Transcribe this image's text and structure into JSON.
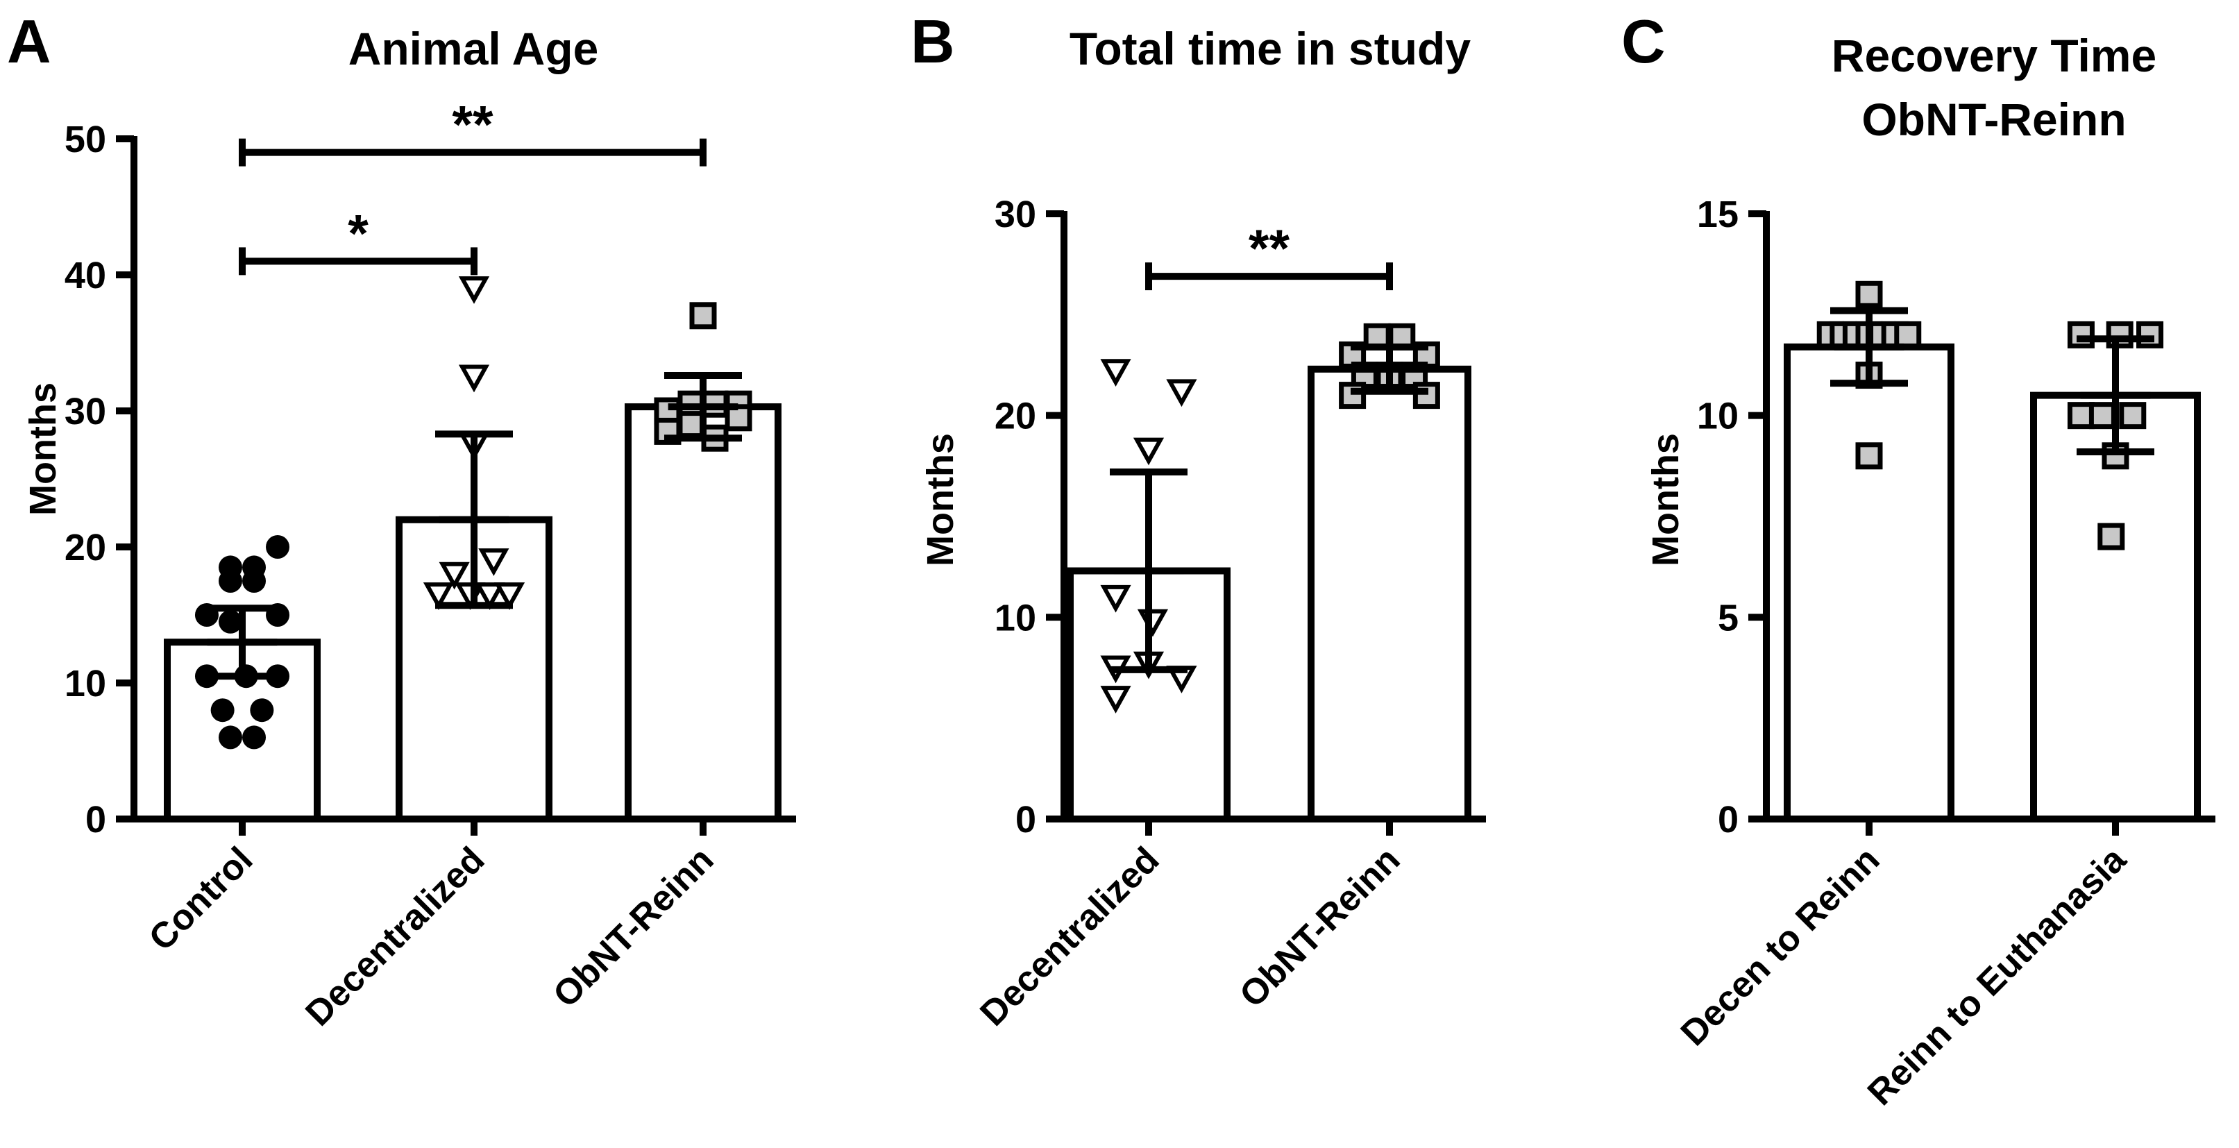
{
  "colors": {
    "ink": "#000000",
    "square_fill": "#c8c8c8",
    "background": "#ffffff"
  },
  "chart_data": [
    {
      "panel": "A",
      "type": "bar",
      "title": [
        "Animal Age"
      ],
      "ylabel": "Months",
      "ylim": [
        0,
        50
      ],
      "yticks": [
        0,
        10,
        20,
        30,
        40,
        50
      ],
      "categories": [
        "Control",
        "Decentralized",
        "ObNT-Reinn"
      ],
      "means": [
        13,
        22,
        30.3
      ],
      "sd": [
        2.5,
        6.3,
        2.3
      ],
      "markers": [
        "circle",
        "triangle",
        "square"
      ],
      "points": [
        [
          [
            -0.45,
            15
          ],
          [
            0.45,
            15
          ],
          [
            -0.15,
            17.5
          ],
          [
            0.15,
            17.5
          ],
          [
            -0.15,
            18.5
          ],
          [
            0.15,
            18.5
          ],
          [
            0.45,
            20
          ],
          [
            -0.15,
            14.5
          ],
          [
            -0.45,
            10.5
          ],
          [
            0.05,
            10.5
          ],
          [
            0.45,
            10.5
          ],
          [
            -0.25,
            8
          ],
          [
            0.25,
            8
          ],
          [
            -0.15,
            6
          ],
          [
            0.15,
            6
          ]
        ],
        [
          [
            0,
            39
          ],
          [
            0,
            32.5
          ],
          [
            0,
            27.5
          ],
          [
            -0.25,
            18
          ],
          [
            0.25,
            19
          ],
          [
            -0.45,
            16.5
          ],
          [
            -0.05,
            16.5
          ],
          [
            0.2,
            16.5
          ],
          [
            0.45,
            16.5
          ]
        ],
        [
          [
            0,
            37
          ],
          [
            -0.45,
            30
          ],
          [
            -0.15,
            30.5
          ],
          [
            0.15,
            30.5
          ],
          [
            0.45,
            30.5
          ],
          [
            -0.45,
            28.5
          ],
          [
            -0.15,
            29
          ],
          [
            0.15,
            28
          ],
          [
            0.45,
            29.5
          ]
        ]
      ],
      "significance": [
        {
          "from": 0,
          "to": 1,
          "y": 41,
          "label": "*"
        },
        {
          "from": 0,
          "to": 2,
          "y": 49,
          "label": "**"
        }
      ]
    },
    {
      "panel": "B",
      "type": "bar",
      "title": [
        "Total time in study"
      ],
      "ylabel": "Months",
      "ylim": [
        0,
        30
      ],
      "yticks": [
        0,
        10,
        20,
        30
      ],
      "categories": [
        "Decentralized",
        "ObNT-Reinn"
      ],
      "means": [
        12.3,
        22.3
      ],
      "sd": [
        4.9,
        1.1
      ],
      "markers": [
        "triangle",
        "square"
      ],
      "points": [
        [
          [
            -0.4,
            22.2
          ],
          [
            0,
            18.3
          ],
          [
            0.4,
            21.2
          ],
          [
            -0.4,
            11
          ],
          [
            0.05,
            9.8
          ],
          [
            -0.4,
            7.5
          ],
          [
            0,
            7.7
          ],
          [
            0.4,
            7
          ],
          [
            -0.4,
            6
          ]
        ],
        [
          [
            -0.45,
            23
          ],
          [
            -0.15,
            23.9
          ],
          [
            0.15,
            23.9
          ],
          [
            0.45,
            23
          ],
          [
            -0.3,
            22
          ],
          [
            0,
            22
          ],
          [
            0.3,
            22
          ],
          [
            -0.45,
            21
          ],
          [
            0.45,
            21
          ]
        ]
      ],
      "significance": [
        {
          "from": 0,
          "to": 1,
          "y": 26.9,
          "label": "**"
        }
      ]
    },
    {
      "panel": "C",
      "type": "bar",
      "title": [
        "Recovery Time",
        "ObNT-Reinn"
      ],
      "ylabel": "Months",
      "ylim": [
        0,
        15
      ],
      "yticks": [
        0,
        5,
        10,
        15
      ],
      "categories": [
        "Decen to Reinn",
        "Reinn to Euthanasia"
      ],
      "means": [
        11.7,
        10.5
      ],
      "sd": [
        0.9,
        1.4
      ],
      "markers": [
        "square",
        "square"
      ],
      "points": [
        [
          [
            0,
            13
          ],
          [
            -0.45,
            12
          ],
          [
            -0.3,
            12
          ],
          [
            -0.15,
            12
          ],
          [
            0,
            12
          ],
          [
            0.15,
            12
          ],
          [
            0.3,
            12
          ],
          [
            0.45,
            12
          ],
          [
            0,
            11
          ],
          [
            0,
            9
          ]
        ],
        [
          [
            -0.4,
            12
          ],
          [
            0.05,
            12
          ],
          [
            0.4,
            12
          ],
          [
            -0.4,
            10
          ],
          [
            -0.15,
            10
          ],
          [
            0.2,
            10
          ],
          [
            0,
            9
          ],
          [
            -0.05,
            7
          ]
        ]
      ],
      "significance": []
    }
  ]
}
